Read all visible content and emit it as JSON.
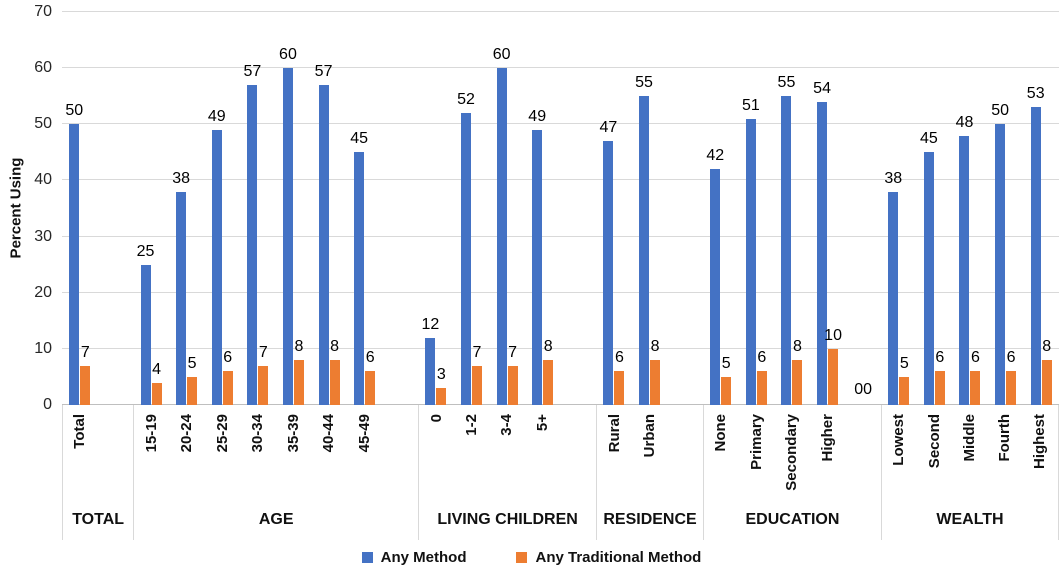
{
  "chart_data": {
    "type": "bar",
    "title": "",
    "xlabel": "",
    "ylabel": "Percent Using",
    "ylim": [
      0,
      70
    ],
    "yticks": [
      0,
      10,
      20,
      30,
      40,
      50,
      60,
      70
    ],
    "grid": true,
    "legend_position": "bottom",
    "bar_value_labels": true,
    "series": [
      {
        "name": "Any Method",
        "color": "#4472C4"
      },
      {
        "name": "Any Traditional Method",
        "color": "#ED7D31"
      }
    ],
    "groups": [
      {
        "label": "TOTAL",
        "categories": [
          "Total"
        ],
        "series_values": [
          [
            50
          ],
          [
            7
          ]
        ],
        "spacer_after": true
      },
      {
        "label": "AGE",
        "categories": [
          "15-19",
          "20-24",
          "25-29",
          "30-34",
          "35-39",
          "40-44",
          "45-49"
        ],
        "series_values": [
          [
            25,
            38,
            49,
            57,
            60,
            57,
            45
          ],
          [
            4,
            5,
            6,
            7,
            8,
            8,
            6
          ]
        ],
        "spacer_after": true
      },
      {
        "label": "LIVING CHILDREN",
        "categories": [
          "0",
          "1-2",
          "3-4",
          "5+"
        ],
        "series_values": [
          [
            12,
            52,
            60,
            49
          ],
          [
            3,
            7,
            7,
            8
          ]
        ],
        "spacer_after": true
      },
      {
        "label": "RESIDENCE",
        "categories": [
          "Rural",
          "Urban"
        ],
        "series_values": [
          [
            47,
            55
          ],
          [
            6,
            8
          ]
        ],
        "spacer_after": true
      },
      {
        "label": "EDUCATION",
        "categories": [
          "None",
          "Primary",
          "Secondary",
          "Higher"
        ],
        "series_values": [
          [
            42,
            51,
            55,
            54
          ],
          [
            5,
            6,
            8,
            10
          ]
        ],
        "spacer_after": true,
        "spacer_label": "00"
      },
      {
        "label": "WEALTH",
        "categories": [
          "Lowest",
          "Second",
          "Middle",
          "Fourth",
          "Highest"
        ],
        "series_values": [
          [
            38,
            45,
            48,
            50,
            53
          ],
          [
            5,
            6,
            6,
            6,
            8
          ]
        ],
        "spacer_after": false
      }
    ],
    "colors": {
      "gridline": "#D9D9D9",
      "axis_line": "#BFBFBF",
      "data_label_text": "#000000"
    }
  }
}
